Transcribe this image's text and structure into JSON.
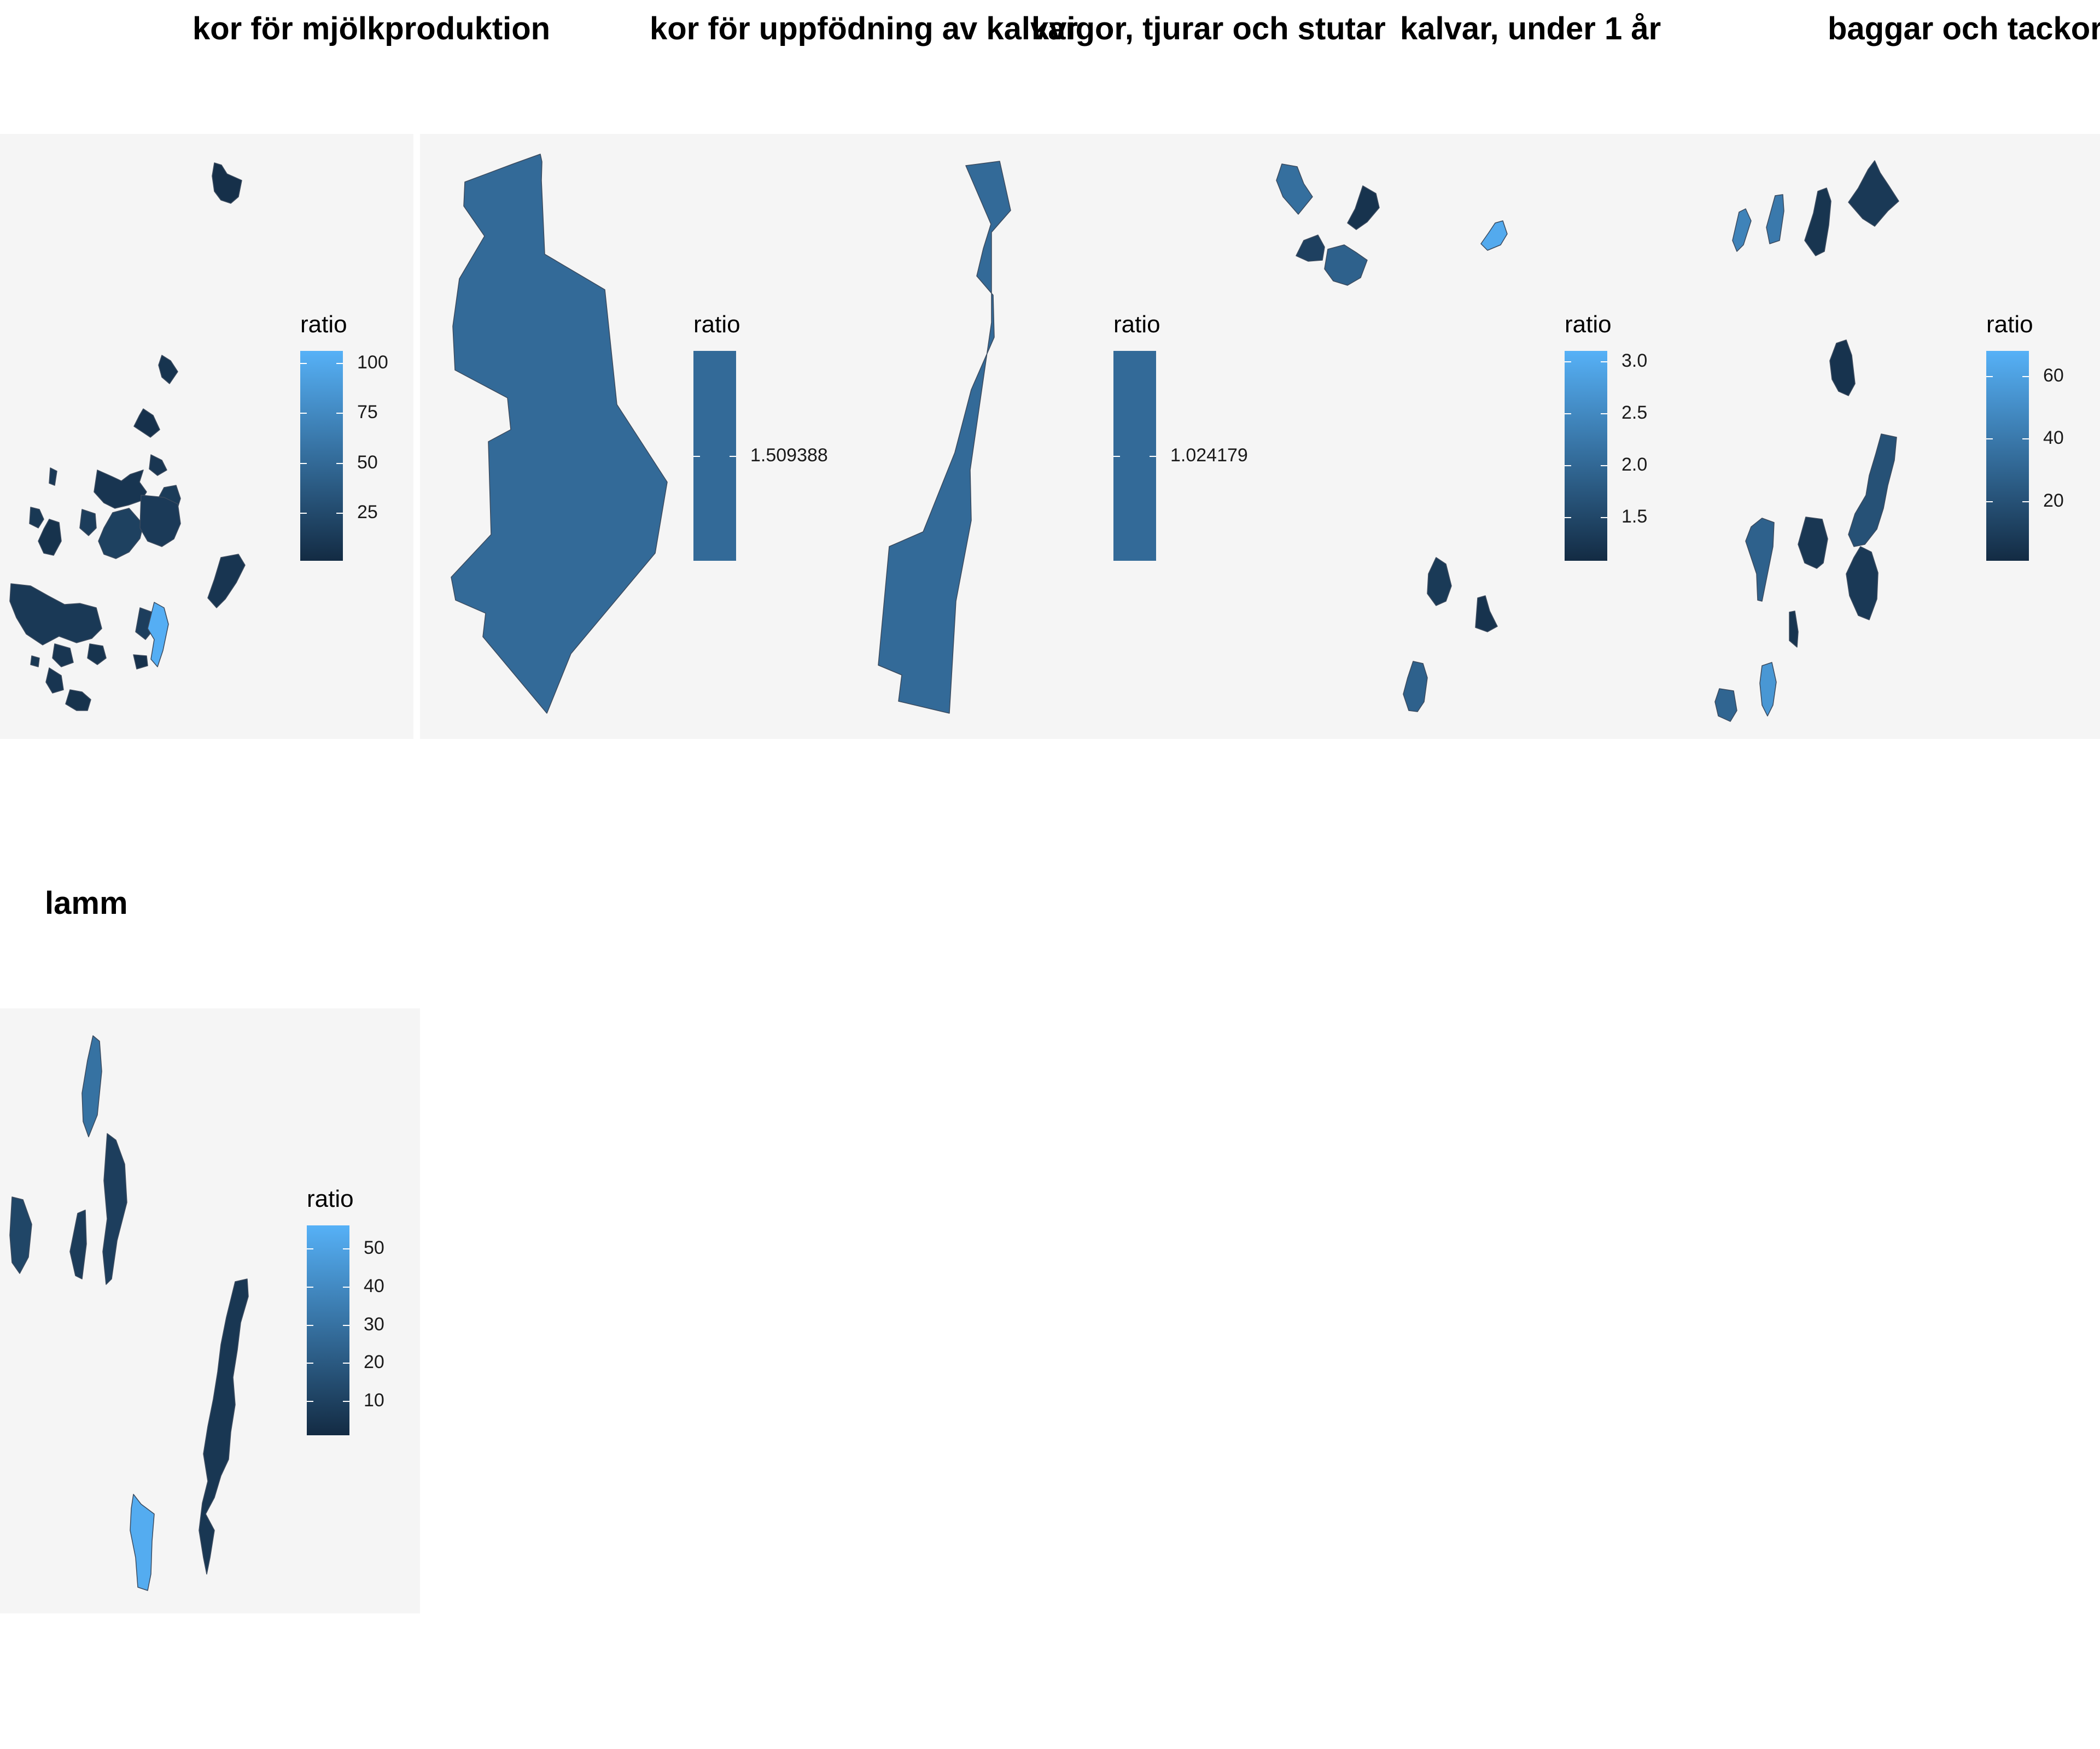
{
  "maps": [
    {
      "title": "kor för mjölkproduktion",
      "legend": {
        "title": "ratio",
        "type": "gradient",
        "domain": [
          1,
          106
        ],
        "ticks": [
          100,
          75,
          50,
          25
        ],
        "colors": [
          "#132B43",
          "#56B1F7"
        ]
      },
      "regions": [
        {
          "name": "",
          "ratio": 5
        },
        {
          "name": "",
          "ratio": 8
        },
        {
          "name": "",
          "ratio": 6
        },
        {
          "name": "",
          "ratio": 10
        },
        {
          "name": "",
          "ratio": 12
        },
        {
          "name": "",
          "ratio": 9
        },
        {
          "name": "",
          "ratio": 14
        },
        {
          "name": "",
          "ratio": 11
        },
        {
          "name": "",
          "ratio": 7
        },
        {
          "name": "",
          "ratio": 18
        },
        {
          "name": "",
          "ratio": 13
        },
        {
          "name": "",
          "ratio": 15
        },
        {
          "name": "",
          "ratio": 9
        },
        {
          "name": "",
          "ratio": 12
        },
        {
          "name": "",
          "ratio": 16
        },
        {
          "name": "",
          "ratio": 10
        },
        {
          "name": "",
          "ratio": 8
        },
        {
          "name": "",
          "ratio": 104
        },
        {
          "name": "",
          "ratio": 6
        },
        {
          "name": "",
          "ratio": 11
        },
        {
          "name": "",
          "ratio": 9
        },
        {
          "name": "",
          "ratio": 7
        }
      ]
    },
    {
      "title": "kor för uppfödning av kalvar",
      "legend": {
        "title": "ratio",
        "type": "single",
        "value": 1.509388,
        "ticks_text": [
          "1.509388"
        ],
        "colors": [
          "#336A98"
        ]
      },
      "regions": [
        {
          "name": "",
          "ratio": 1.509388
        }
      ]
    },
    {
      "title": "kvigor, tjurar och stutar",
      "legend": {
        "title": "ratio",
        "type": "single",
        "value": 1.024179,
        "ticks_text": [
          "1.024179"
        ],
        "colors": [
          "#336A98"
        ]
      },
      "regions": [
        {
          "name": "",
          "ratio": 1.024179
        }
      ]
    },
    {
      "title": "kalvar, under 1 år",
      "legend": {
        "title": "ratio",
        "type": "gradient",
        "domain": [
          1.08,
          3.1
        ],
        "ticks": [
          3.0,
          2.5,
          2.0,
          1.5
        ],
        "colors": [
          "#132B43",
          "#56B1F7"
        ]
      },
      "regions": [
        {
          "name": "",
          "ratio": 2.1
        },
        {
          "name": "",
          "ratio": 1.2
        },
        {
          "name": "",
          "ratio": 1.4
        },
        {
          "name": "",
          "ratio": 1.9
        },
        {
          "name": "",
          "ratio": 3.0
        },
        {
          "name": "",
          "ratio": 1.3
        },
        {
          "name": "",
          "ratio": 1.2
        },
        {
          "name": "",
          "ratio": 1.9
        }
      ]
    },
    {
      "title": "baggar och tackor",
      "legend": {
        "title": "ratio",
        "type": "gradient",
        "domain": [
          1,
          68
        ],
        "ticks": [
          60,
          40,
          20
        ],
        "colors": [
          "#132B43",
          "#56B1F7"
        ]
      },
      "regions": [
        {
          "name": "",
          "ratio": 45
        },
        {
          "name": "",
          "ratio": 40
        },
        {
          "name": "",
          "ratio": 6
        },
        {
          "name": "",
          "ratio": 8
        },
        {
          "name": "",
          "ratio": 5
        },
        {
          "name": "",
          "ratio": 20
        },
        {
          "name": "",
          "ratio": 7
        },
        {
          "name": "",
          "ratio": 28
        },
        {
          "name": "",
          "ratio": 8
        },
        {
          "name": "",
          "ratio": 6
        },
        {
          "name": "",
          "ratio": 55
        },
        {
          "name": "",
          "ratio": 30
        }
      ]
    },
    {
      "title": "lamm",
      "legend": {
        "title": "ratio",
        "type": "gradient",
        "domain": [
          1,
          56
        ],
        "ticks": [
          50,
          40,
          30,
          20,
          10
        ],
        "colors": [
          "#132B43",
          "#56B1F7"
        ]
      },
      "regions": [
        {
          "name": "",
          "ratio": 30
        },
        {
          "name": "",
          "ratio": 12
        },
        {
          "name": "",
          "ratio": 8
        },
        {
          "name": "",
          "ratio": 9
        },
        {
          "name": "",
          "ratio": 6
        },
        {
          "name": "",
          "ratio": 54
        }
      ]
    }
  ]
}
